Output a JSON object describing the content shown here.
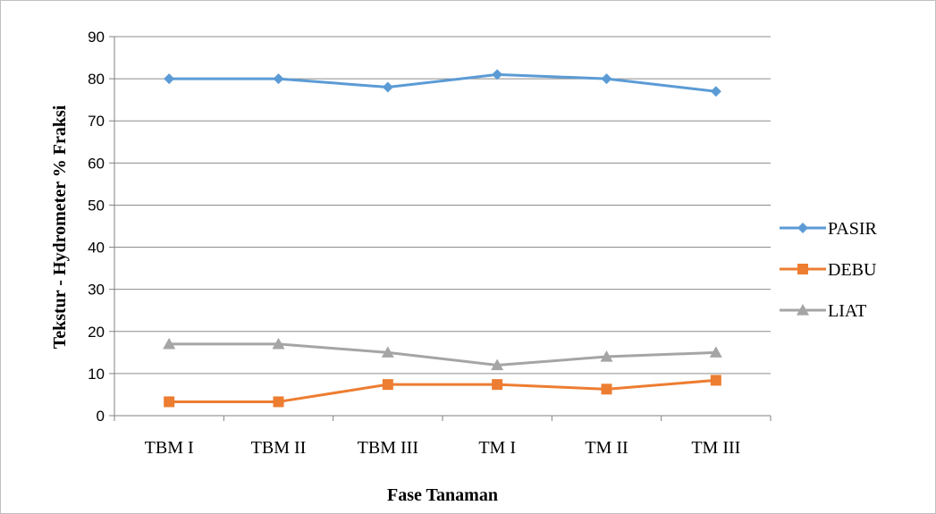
{
  "chart_data": {
    "type": "line",
    "title": "",
    "xlabel": "Fase Tanaman",
    "ylabel": "Tekstur - Hydrometer % Fraksi",
    "categories": [
      "TBM I",
      "TBM II",
      "TBM III",
      "TM I",
      "TM II",
      "TM III"
    ],
    "ylim": [
      0,
      90
    ],
    "yticks": [
      "0",
      "10",
      "20",
      "30",
      "40",
      "50",
      "60",
      "70",
      "80",
      "90"
    ],
    "grid": "horizontal",
    "legend_position": "right",
    "series": [
      {
        "name": "PASIR",
        "values": [
          80,
          80,
          78,
          81,
          80,
          77
        ],
        "color": "#5b9bd5",
        "marker": "diamond"
      },
      {
        "name": "DEBU",
        "values": [
          3.3,
          3.3,
          7.4,
          7.4,
          6.3,
          8.4
        ],
        "color": "#ed7d31",
        "marker": "square"
      },
      {
        "name": "LIAT",
        "values": [
          17,
          17,
          15,
          12,
          14,
          15
        ],
        "color": "#a5a5a5",
        "marker": "triangle"
      }
    ]
  }
}
